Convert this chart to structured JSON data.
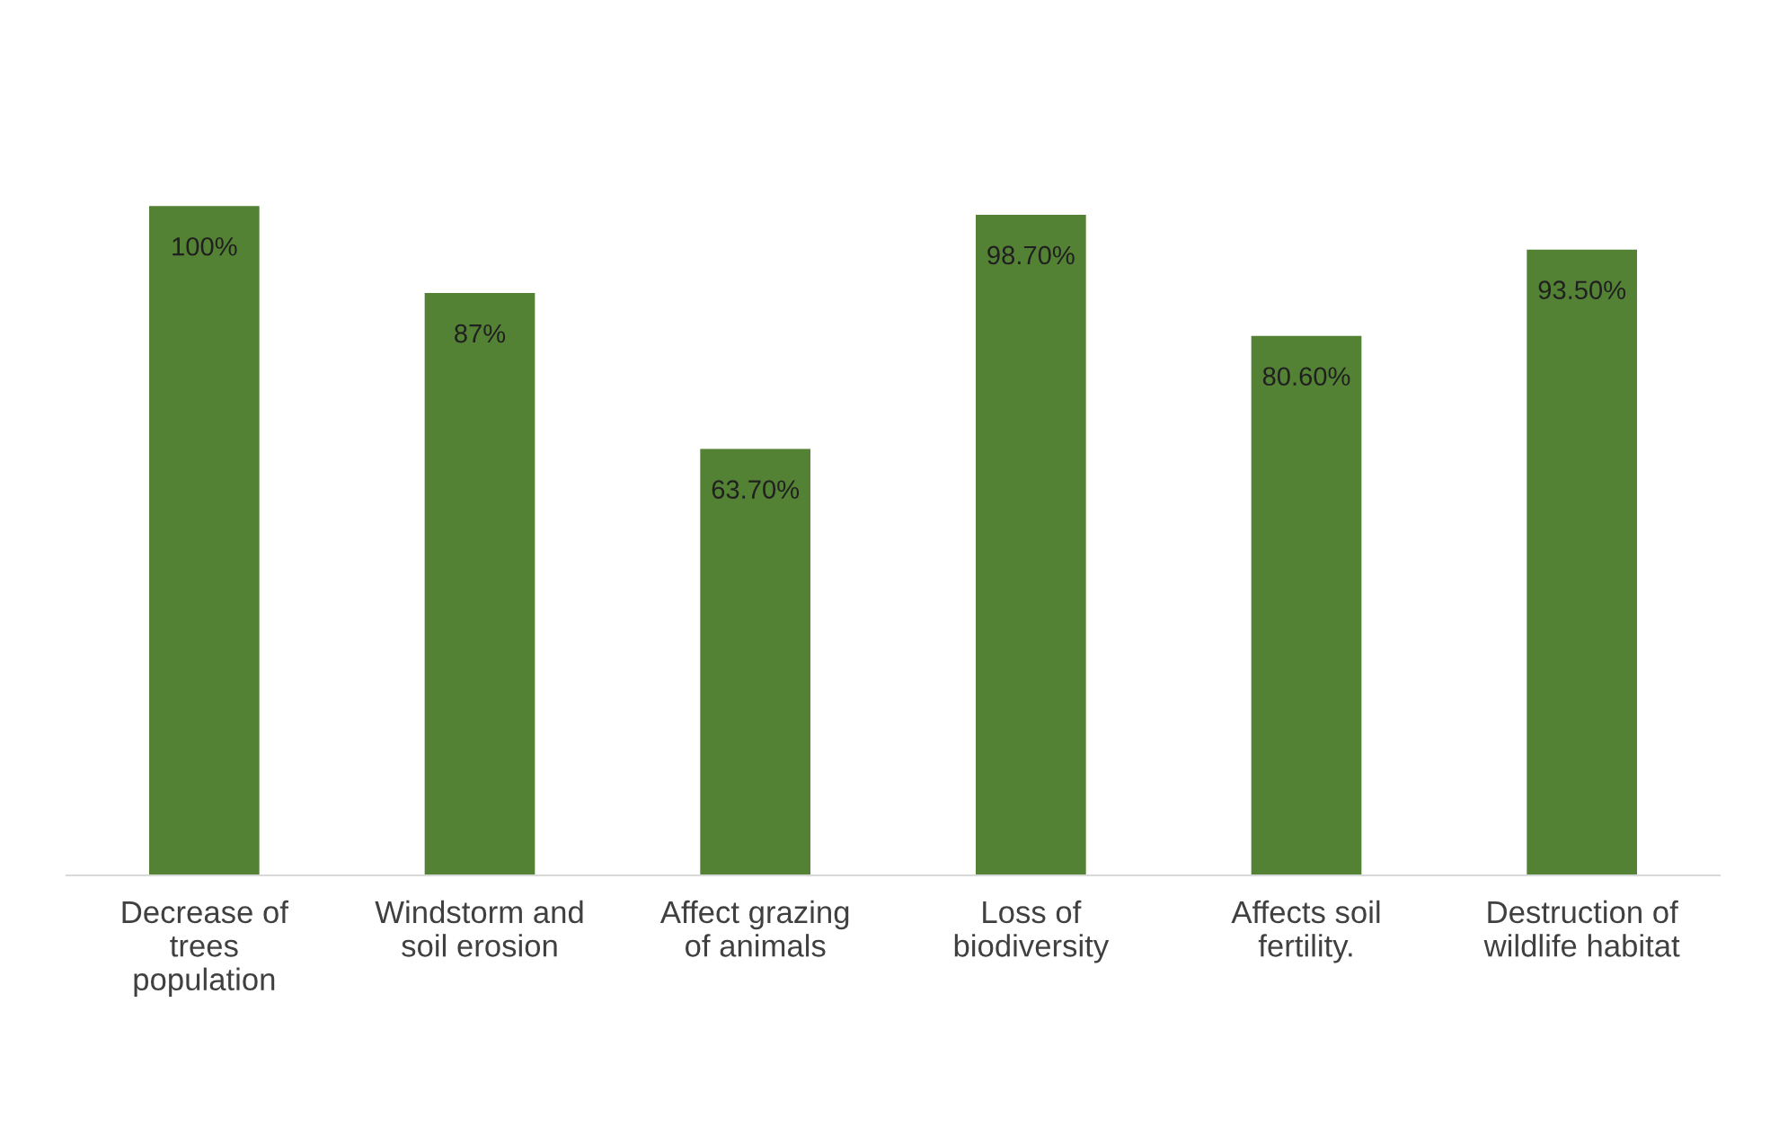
{
  "chart_data": {
    "type": "bar",
    "categories": [
      "Decrease of\ntrees\npopulation",
      "Windstorm and\nsoil erosion",
      "Affect grazing\nof animals",
      "Loss of\nbiodiversity",
      "Affects soil\nfertility.",
      "Destruction of\nwildlife habitat"
    ],
    "values": [
      100,
      87,
      63.7,
      98.7,
      80.6,
      93.5
    ],
    "value_labels": [
      "100%",
      "87%",
      "63.70%",
      "98.70%",
      "80.60%",
      "93.50%"
    ],
    "color": "#548235",
    "tick_labels": "x",
    "grid": false,
    "legend": false
  }
}
